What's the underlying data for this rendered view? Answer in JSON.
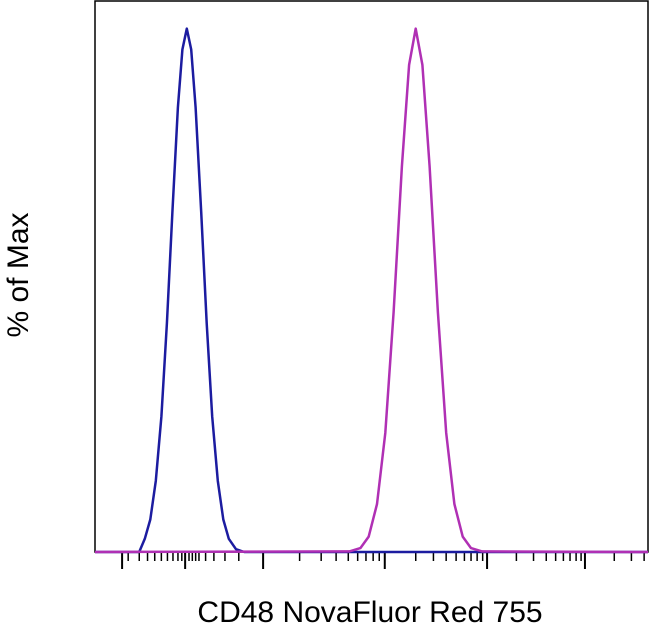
{
  "chart_data": {
    "type": "line",
    "x_label": "CD48 NovaFluor Red 755",
    "y_label": "% of Max",
    "xlim": [
      0,
      1000
    ],
    "ylim": [
      0,
      100
    ],
    "xticks": [
      49,
      163,
      304,
      524,
      709,
      886
    ],
    "minor_xticks": [
      60,
      80,
      95,
      108,
      120,
      131,
      141,
      150,
      157,
      170,
      176,
      182,
      188,
      200,
      215,
      235,
      260,
      370,
      409,
      436,
      458,
      475,
      490,
      503,
      514,
      580,
      612,
      635,
      653,
      668,
      680,
      691,
      701,
      762,
      793,
      816,
      833,
      847,
      859,
      870,
      879,
      939,
      970,
      993
    ],
    "series": [
      {
        "name": "Blue",
        "color": "#1c1ca0",
        "x": [
          0,
          80,
          90,
          100,
          110,
          120,
          130,
          140,
          150,
          158,
          166,
          174,
          182,
          192,
          202,
          212,
          222,
          232,
          242,
          255,
          270,
          1000
        ],
        "values": [
          0,
          0,
          2.4,
          5.9,
          12.9,
          24.6,
          41.5,
          61.7,
          80.7,
          91.2,
          95,
          91.2,
          80.7,
          61.7,
          41.5,
          24.6,
          12.9,
          5.9,
          2.4,
          0.5,
          0,
          0
        ]
      },
      {
        "name": "Magenta",
        "color": "#b030b4",
        "x": [
          0,
          460,
          480,
          495,
          510,
          525,
          540,
          555,
          568,
          580,
          592,
          605,
          620,
          635,
          650,
          665,
          680,
          700,
          1000
        ],
        "values": [
          0,
          0.1,
          0.7,
          2.8,
          8.7,
          21.6,
          43.5,
          70,
          88.4,
          95,
          88.4,
          70,
          43.5,
          21.6,
          8.7,
          2.8,
          0.7,
          0.1,
          0
        ]
      }
    ]
  }
}
